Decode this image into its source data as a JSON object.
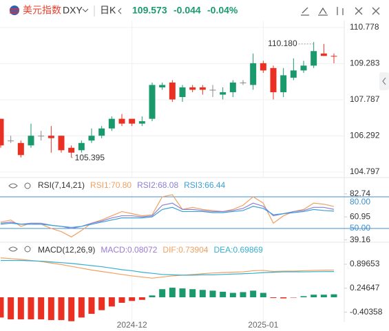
{
  "header": {
    "name": "美元指数",
    "symbol": "DXY",
    "period": "日K",
    "price": "109.573",
    "change": "-0.044",
    "change_pct": "-0.04%"
  },
  "chart_data": [
    {
      "type": "candlestick",
      "categories": [
        null,
        null,
        null,
        null,
        null,
        null,
        null,
        null,
        null,
        null,
        null,
        null,
        null,
        "2024-12",
        null,
        null,
        null,
        null,
        null,
        null,
        null,
        null,
        null,
        null,
        null,
        null,
        "2025-01",
        null,
        null,
        null,
        null,
        null,
        null,
        null
      ],
      "open": [
        107.0,
        106.1,
        106.0,
        105.9,
        106.3,
        106.3,
        106.3,
        105.8,
        105.7,
        106.1,
        106.3,
        106.6,
        107.0,
        107.0,
        106.8,
        107.0,
        108.3,
        108.5,
        107.9,
        108.3,
        108.3,
        108.2,
        108.0,
        108.1,
        108.5,
        108.4,
        109.3,
        109.1,
        108.1,
        108.7,
        109.0,
        109.2,
        109.7,
        109.6
      ],
      "high": [
        107.0,
        106.3,
        106.1,
        106.8,
        106.5,
        106.7,
        106.3,
        105.9,
        106.1,
        106.6,
        106.7,
        107.1,
        107.2,
        107.0,
        107.1,
        108.5,
        108.5,
        108.6,
        108.4,
        108.4,
        108.4,
        108.4,
        108.3,
        108.6,
        108.6,
        109.7,
        109.4,
        109.2,
        109.1,
        109.5,
        109.4,
        110.18,
        110.1,
        109.7
      ],
      "low": [
        105.8,
        106.0,
        105.4,
        105.8,
        106.1,
        105.6,
        105.6,
        105.395,
        105.6,
        106.0,
        106.2,
        106.5,
        106.7,
        106.7,
        106.7,
        106.9,
        108.2,
        107.7,
        107.7,
        108.1,
        108.0,
        107.9,
        107.8,
        107.9,
        108.4,
        108.2,
        108.9,
        107.8,
        107.9,
        108.6,
        108.9,
        109.1,
        109.6,
        109.3
      ],
      "close": [
        105.9,
        106.1,
        105.5,
        106.3,
        106.3,
        106.2,
        105.7,
        105.6,
        106.0,
        106.3,
        106.6,
        107.0,
        106.8,
        106.8,
        106.9,
        108.4,
        108.4,
        107.8,
        108.3,
        108.2,
        108.2,
        108.2,
        108.1,
        108.5,
        108.5,
        109.3,
        109.0,
        108.1,
        108.8,
        109.0,
        109.2,
        109.8,
        109.6,
        109.573
      ],
      "up_color": "#1a9a6c",
      "down_color": "#ea2f23",
      "flat_color": "#888888",
      "max_label": "110.180",
      "min_label": "105.395",
      "ylim": [
        104.57,
        111.06
      ],
      "yticks": [
        110.778,
        109.283,
        107.787,
        106.292,
        104.797
      ],
      "grid": true
    },
    {
      "type": "line",
      "title": "RSI(7,14,21)",
      "series": [
        {
          "name": "RSI1:70.80",
          "color": "#f0a060",
          "values": [
            56,
            58,
            52,
            55,
            54,
            50,
            47,
            42,
            48,
            55,
            58,
            62,
            66,
            64,
            62,
            63,
            80,
            82,
            68,
            70,
            68,
            67,
            66,
            68,
            72,
            80,
            74,
            55,
            62,
            66,
            68,
            74,
            73,
            70.8
          ]
        },
        {
          "name": "RSI2:68.08",
          "color": "#8c7fd8",
          "values": [
            55,
            56,
            54,
            55,
            55,
            53,
            52,
            50,
            52,
            55,
            57,
            60,
            62,
            62,
            61,
            62,
            72,
            74,
            68,
            68,
            67,
            66,
            66,
            67,
            69,
            74,
            71,
            62,
            64,
            66,
            67,
            70,
            70,
            68.08
          ]
        },
        {
          "name": "RSI3:66.44",
          "color": "#3a9fd8",
          "values": [
            54,
            55,
            54,
            54,
            54,
            53,
            52,
            51,
            52,
            54,
            56,
            58,
            60,
            60,
            60,
            61,
            68,
            70,
            66,
            66,
            66,
            65,
            65,
            66,
            67,
            71,
            69,
            63,
            64,
            65,
            66,
            68,
            67,
            66.44
          ]
        }
      ],
      "ylim": [
        36.95,
        85.2
      ],
      "yticks": [
        {
          "value": 80,
          "label": "80.00"
        },
        82.74,
        60.95,
        {
          "value": 50,
          "label": "50.00"
        },
        39.16
      ],
      "level_color": "#3d8fd1"
    },
    {
      "type": "macd",
      "title": "MACD(12,26,9)",
      "histogram": {
        "name": "MACD:0.08072",
        "color": "#9a7ad6",
        "up_color": "#1a9a6c",
        "down_color": "#ea2f23",
        "values": [
          -0.55,
          -0.6,
          -0.6,
          -0.6,
          -0.6,
          -0.62,
          -0.62,
          -0.65,
          -0.55,
          -0.45,
          -0.35,
          -0.25,
          -0.15,
          -0.1,
          -0.07,
          0.05,
          0.22,
          0.26,
          0.24,
          0.22,
          0.2,
          0.18,
          0.15,
          0.12,
          0.14,
          0.18,
          0.12,
          -0.02,
          -0.03,
          -0.01,
          0.03,
          0.07,
          0.07,
          0.08072
        ]
      },
      "series": [
        {
          "name": "DIF:0.73904",
          "color": "#f0a060",
          "values": [
            1.07,
            1.05,
            1.03,
            1.0,
            0.97,
            0.93,
            0.89,
            0.84,
            0.79,
            0.74,
            0.7,
            0.66,
            0.62,
            0.58,
            0.55,
            0.52,
            0.55,
            0.58,
            0.6,
            0.62,
            0.64,
            0.66,
            0.67,
            0.68,
            0.69,
            0.72,
            0.73,
            0.7,
            0.71,
            0.71,
            0.72,
            0.73,
            0.735,
            0.73904
          ]
        },
        {
          "name": "DEA:0.69869",
          "color": "#35aed0",
          "values": [
            1.0,
            1.0,
            1.0,
            0.99,
            0.98,
            0.96,
            0.94,
            0.92,
            0.89,
            0.86,
            0.83,
            0.79,
            0.75,
            0.72,
            0.68,
            0.65,
            0.62,
            0.61,
            0.6,
            0.6,
            0.61,
            0.61,
            0.62,
            0.63,
            0.64,
            0.65,
            0.67,
            0.68,
            0.69,
            0.69,
            0.69,
            0.695,
            0.697,
            0.69869
          ]
        }
      ],
      "ylim": [
        -0.673,
        1.121
      ],
      "yticks": [
        0.89653,
        0.24647,
        -0.40358
      ]
    }
  ]
}
